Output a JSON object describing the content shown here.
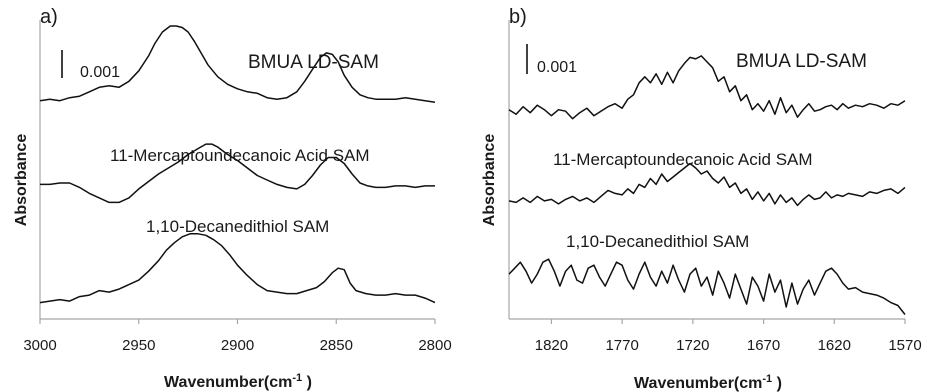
{
  "chart_data": [
    {
      "type": "line",
      "panel_label": "a)",
      "title": "BMUA LD-SAM",
      "scale_bar_label": "0.001",
      "xlabel": "Wavenumber(cm",
      "xlabel_sup": "-1",
      "xlabel_end": " )",
      "ylabel": "Absorbance",
      "xlim": [
        3000,
        2800
      ],
      "ylim": [
        0,
        10
      ],
      "x_ticks": [
        3000,
        2950,
        2900,
        2850,
        2800
      ],
      "x_tick_labels": [
        "3000",
        "2950",
        "2900",
        "2850",
        "2800"
      ],
      "grid": false,
      "series": [
        {
          "name": "BMUA LD-SAM",
          "x": [
            3000,
            2995,
            2990,
            2985,
            2980,
            2975,
            2970,
            2965,
            2960,
            2955,
            2950,
            2945,
            2942,
            2938,
            2934,
            2931,
            2928,
            2925,
            2922,
            2918,
            2915,
            2910,
            2905,
            2900,
            2895,
            2890,
            2885,
            2880,
            2875,
            2870,
            2866,
            2862,
            2858,
            2855,
            2852,
            2849,
            2846,
            2842,
            2838,
            2834,
            2830,
            2825,
            2820,
            2815,
            2810,
            2805,
            2800
          ],
          "y": [
            7.3,
            7.35,
            7.3,
            7.4,
            7.45,
            7.6,
            7.75,
            7.8,
            7.75,
            7.95,
            8.3,
            8.8,
            9.2,
            9.6,
            9.8,
            9.8,
            9.75,
            9.6,
            9.3,
            8.85,
            8.5,
            8.1,
            7.85,
            7.7,
            7.6,
            7.55,
            7.4,
            7.35,
            7.4,
            7.6,
            7.95,
            8.35,
            8.75,
            8.9,
            8.85,
            8.6,
            8.15,
            7.75,
            7.5,
            7.4,
            7.35,
            7.35,
            7.35,
            7.4,
            7.35,
            7.3,
            7.25
          ]
        },
        {
          "name": "11-Mercaptoundecanoic Acid SAM",
          "x": [
            3000,
            2995,
            2990,
            2985,
            2980,
            2975,
            2970,
            2965,
            2960,
            2955,
            2950,
            2945,
            2940,
            2935,
            2930,
            2925,
            2920,
            2916,
            2913,
            2910,
            2905,
            2900,
            2895,
            2890,
            2885,
            2880,
            2875,
            2870,
            2866,
            2862,
            2858,
            2854,
            2850,
            2846,
            2842,
            2838,
            2834,
            2830,
            2825,
            2820,
            2815,
            2810,
            2805,
            2800
          ],
          "y": [
            4.5,
            4.5,
            4.55,
            4.55,
            4.4,
            4.2,
            4.05,
            3.9,
            3.9,
            4.05,
            4.35,
            4.6,
            4.85,
            5.05,
            5.25,
            5.5,
            5.7,
            5.85,
            5.85,
            5.75,
            5.5,
            5.3,
            5.05,
            4.8,
            4.65,
            4.5,
            4.4,
            4.35,
            4.5,
            4.8,
            5.15,
            5.4,
            5.4,
            5.2,
            4.85,
            4.55,
            4.45,
            4.4,
            4.4,
            4.45,
            4.45,
            4.4,
            4.45,
            4.45
          ]
        },
        {
          "name": "1,10-Decanedithiol SAM",
          "x": [
            3000,
            2995,
            2990,
            2985,
            2980,
            2975,
            2970,
            2965,
            2960,
            2955,
            2950,
            2945,
            2940,
            2936,
            2932,
            2928,
            2924,
            2920,
            2916,
            2912,
            2908,
            2904,
            2900,
            2895,
            2890,
            2885,
            2880,
            2875,
            2870,
            2865,
            2860,
            2856,
            2852,
            2849,
            2846,
            2843,
            2840,
            2835,
            2830,
            2825,
            2820,
            2815,
            2810,
            2805,
            2800
          ],
          "y": [
            0.55,
            0.6,
            0.65,
            0.6,
            0.75,
            0.8,
            0.95,
            0.9,
            1.0,
            1.15,
            1.3,
            1.6,
            1.95,
            2.3,
            2.55,
            2.75,
            2.85,
            2.85,
            2.8,
            2.65,
            2.45,
            2.15,
            1.8,
            1.45,
            1.15,
            0.95,
            0.9,
            0.85,
            0.85,
            0.95,
            1.05,
            1.25,
            1.55,
            1.7,
            1.65,
            1.2,
            0.95,
            0.85,
            0.8,
            0.8,
            0.85,
            0.8,
            0.8,
            0.7,
            0.55
          ]
        }
      ]
    },
    {
      "type": "line",
      "panel_label": "b)",
      "title": "BMUA LD-SAM",
      "scale_bar_label": "0.001",
      "xlabel": "Wavenumber(cm",
      "xlabel_sup": "-1",
      "xlabel_end": " )",
      "ylabel": "Absorbance",
      "xlim": [
        1850,
        1570
      ],
      "ylim": [
        0,
        10
      ],
      "x_ticks": [
        1820,
        1770,
        1720,
        1670,
        1620,
        1570
      ],
      "x_tick_labels": [
        "1820",
        "1770",
        "1720",
        "1670",
        "1620",
        "1570"
      ],
      "grid": false,
      "series": [
        {
          "name": "BMUA LD-SAM",
          "x": [
            1850,
            1845,
            1840,
            1835,
            1830,
            1825,
            1820,
            1815,
            1810,
            1805,
            1800,
            1795,
            1790,
            1785,
            1780,
            1775,
            1770,
            1766,
            1762,
            1758,
            1754,
            1750,
            1746,
            1742,
            1738,
            1734,
            1730,
            1726,
            1722,
            1718,
            1714,
            1710,
            1706,
            1702,
            1698,
            1694,
            1690,
            1686,
            1682,
            1678,
            1674,
            1670,
            1666,
            1662,
            1658,
            1654,
            1650,
            1646,
            1642,
            1638,
            1634,
            1630,
            1626,
            1622,
            1618,
            1614,
            1610,
            1605,
            1600,
            1595,
            1590,
            1585,
            1580,
            1575,
            1570
          ],
          "y": [
            7.0,
            6.85,
            7.1,
            6.9,
            7.15,
            7.0,
            6.8,
            7.0,
            6.95,
            6.7,
            6.9,
            7.05,
            6.8,
            6.95,
            7.1,
            7.2,
            7.05,
            7.35,
            7.5,
            7.9,
            8.1,
            7.9,
            8.2,
            7.85,
            8.25,
            7.9,
            8.3,
            8.55,
            8.75,
            8.7,
            8.8,
            8.6,
            8.4,
            7.95,
            8.1,
            7.6,
            7.8,
            7.3,
            7.5,
            7.0,
            7.2,
            6.95,
            7.3,
            6.85,
            7.4,
            6.9,
            7.15,
            6.75,
            7.0,
            7.2,
            6.95,
            7.0,
            7.1,
            7.15,
            7.0,
            7.2,
            7.05,
            7.15,
            7.1,
            7.2,
            7.15,
            7.05,
            7.2,
            7.15,
            7.3
          ]
        },
        {
          "name": "11-Mercaptoundecanoic Acid SAM",
          "x": [
            1850,
            1845,
            1840,
            1835,
            1830,
            1825,
            1820,
            1815,
            1810,
            1805,
            1800,
            1795,
            1790,
            1785,
            1780,
            1775,
            1770,
            1766,
            1762,
            1758,
            1754,
            1750,
            1746,
            1742,
            1738,
            1734,
            1730,
            1726,
            1722,
            1718,
            1714,
            1710,
            1706,
            1702,
            1698,
            1694,
            1690,
            1686,
            1682,
            1678,
            1674,
            1670,
            1666,
            1662,
            1658,
            1654,
            1650,
            1646,
            1642,
            1638,
            1634,
            1630,
            1626,
            1622,
            1618,
            1614,
            1610,
            1605,
            1600,
            1595,
            1590,
            1585,
            1580,
            1575,
            1570
          ],
          "y": [
            3.95,
            3.9,
            4.05,
            3.9,
            4.1,
            3.95,
            4.0,
            3.85,
            4.0,
            4.1,
            3.95,
            4.05,
            3.9,
            4.1,
            4.3,
            4.2,
            4.15,
            4.35,
            4.2,
            4.5,
            4.4,
            4.7,
            4.5,
            4.85,
            4.6,
            4.75,
            4.9,
            5.05,
            5.2,
            5.05,
            4.85,
            4.95,
            4.7,
            4.55,
            4.75,
            4.4,
            4.55,
            4.2,
            4.35,
            4.0,
            4.25,
            3.95,
            4.2,
            3.85,
            4.15,
            3.9,
            4.05,
            3.8,
            4.0,
            4.15,
            4.0,
            4.05,
            4.25,
            4.05,
            4.15,
            4.1,
            4.2,
            4.15,
            4.1,
            4.25,
            4.2,
            4.3,
            4.35,
            4.2,
            4.4
          ]
        },
        {
          "name": "1,10-Decanedithiol SAM",
          "x": [
            1850,
            1846,
            1842,
            1838,
            1834,
            1830,
            1826,
            1822,
            1818,
            1814,
            1810,
            1806,
            1802,
            1798,
            1794,
            1790,
            1786,
            1782,
            1778,
            1774,
            1770,
            1766,
            1762,
            1758,
            1754,
            1750,
            1746,
            1742,
            1738,
            1734,
            1730,
            1726,
            1722,
            1718,
            1714,
            1710,
            1706,
            1702,
            1698,
            1694,
            1690,
            1686,
            1682,
            1678,
            1674,
            1670,
            1666,
            1662,
            1658,
            1654,
            1650,
            1646,
            1642,
            1638,
            1634,
            1630,
            1626,
            1622,
            1618,
            1614,
            1610,
            1605,
            1600,
            1595,
            1590,
            1585,
            1580,
            1575,
            1570
          ],
          "y": [
            1.5,
            1.7,
            1.9,
            1.6,
            1.2,
            1.5,
            1.9,
            2.0,
            1.6,
            1.1,
            1.6,
            1.8,
            1.3,
            1.2,
            1.7,
            1.8,
            1.4,
            1.1,
            1.5,
            1.9,
            1.8,
            1.3,
            1.0,
            1.5,
            1.9,
            1.4,
            1.1,
            1.6,
            1.2,
            1.8,
            1.3,
            0.9,
            1.5,
            1.7,
            1.1,
            1.4,
            0.8,
            1.6,
            1.2,
            0.7,
            1.5,
            1.0,
            0.5,
            1.4,
            1.1,
            0.6,
            1.5,
            0.9,
            1.3,
            0.4,
            1.2,
            0.5,
            1.0,
            1.3,
            0.8,
            1.2,
            1.6,
            1.7,
            1.5,
            1.2,
            1.0,
            1.05,
            0.9,
            0.85,
            0.8,
            0.7,
            0.55,
            0.45,
            0.15
          ]
        }
      ]
    }
  ]
}
